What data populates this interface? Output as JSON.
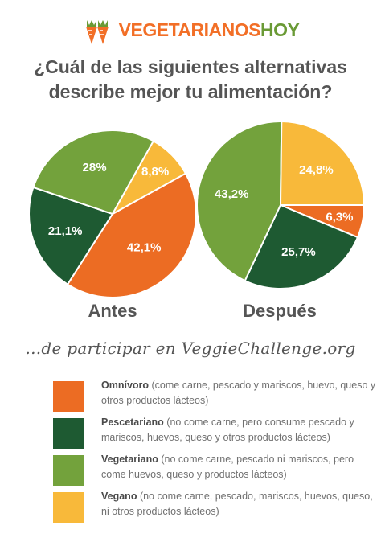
{
  "logo": {
    "main": "VEGETARIANOS",
    "accent": "HOY"
  },
  "question": {
    "line1": "¿Cuál de las siguientes alternativas",
    "line2": "describe mejor tu alimentación?"
  },
  "subtitle": "...de participar en VeggieChallenge.org",
  "colors": {
    "omnivoro": "#ec6c23",
    "pescetariano": "#1e5a32",
    "vegetariano": "#73a23c",
    "vegano": "#f8b93a",
    "logo_orange": "#f26f27",
    "logo_green": "#6a9a35"
  },
  "chart_data": [
    {
      "type": "pie",
      "title": "Antes",
      "categories": [
        "Omnívoro",
        "Pescetariano",
        "Vegetariano",
        "Vegano"
      ],
      "values": [
        42.1,
        21.1,
        28.0,
        8.8
      ],
      "labels": [
        "42,1%",
        "21,1%",
        "28%",
        "8,8%"
      ]
    },
    {
      "type": "pie",
      "title": "Después",
      "categories": [
        "Omnívoro",
        "Pescetariano",
        "Vegetariano",
        "Vegano"
      ],
      "values": [
        6.3,
        25.7,
        43.2,
        24.8
      ],
      "labels": [
        "6,3%",
        "25,7%",
        "43,2%",
        "24,8%"
      ]
    }
  ],
  "legend": [
    {
      "name": "Omnívoro",
      "desc": " (come carne, pescado y mariscos, huevo, queso y otros productos lácteos)"
    },
    {
      "name": "Pescetariano",
      "desc": " (no come carne, pero consume pescado y mariscos, huevos, queso y otros productos lácteos)"
    },
    {
      "name": "Vegetariano",
      "desc": " (no come carne, pescado ni mariscos, pero come huevos, queso y productos lácteos)"
    },
    {
      "name": "Vegano",
      "desc": " (no come carne, pescado, mariscos, huevos, queso, ni otros productos lácteos)"
    }
  ]
}
